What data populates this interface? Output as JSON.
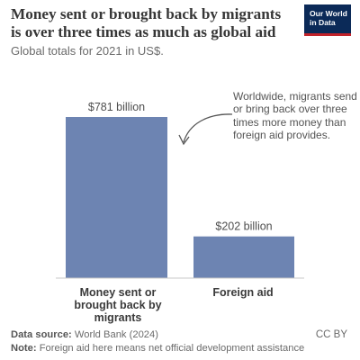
{
  "title": "Money sent or brought back by migrants is over three times as much as global aid",
  "subtitle": "Global totals for 2021 in US$.",
  "logo": {
    "line1": "Our World",
    "line2": "in Data"
  },
  "annotation": "Worldwide, migrants send or bring back over three times more money than foreign aid provides.",
  "footer": {
    "source_label": "Data source:",
    "source": "World Bank (2024)",
    "note_label": "Note:",
    "note": "Foreign aid here means net official development assistance",
    "license": "CC BY"
  },
  "colors": {
    "bar": "#6d84b2",
    "logo_bg": "#0b2a58",
    "logo_accent": "#c2232b"
  },
  "chart_data": {
    "type": "bar",
    "categories": [
      "Money sent or brought back by migrants",
      "Foreign aid"
    ],
    "values": [
      781,
      202
    ],
    "value_labels": [
      "$781 billion",
      "$202 billion"
    ],
    "unit": "billion US$",
    "year": 2021,
    "ylim": [
      0,
      781
    ],
    "grid": false,
    "axis_ticks_shown": false
  }
}
